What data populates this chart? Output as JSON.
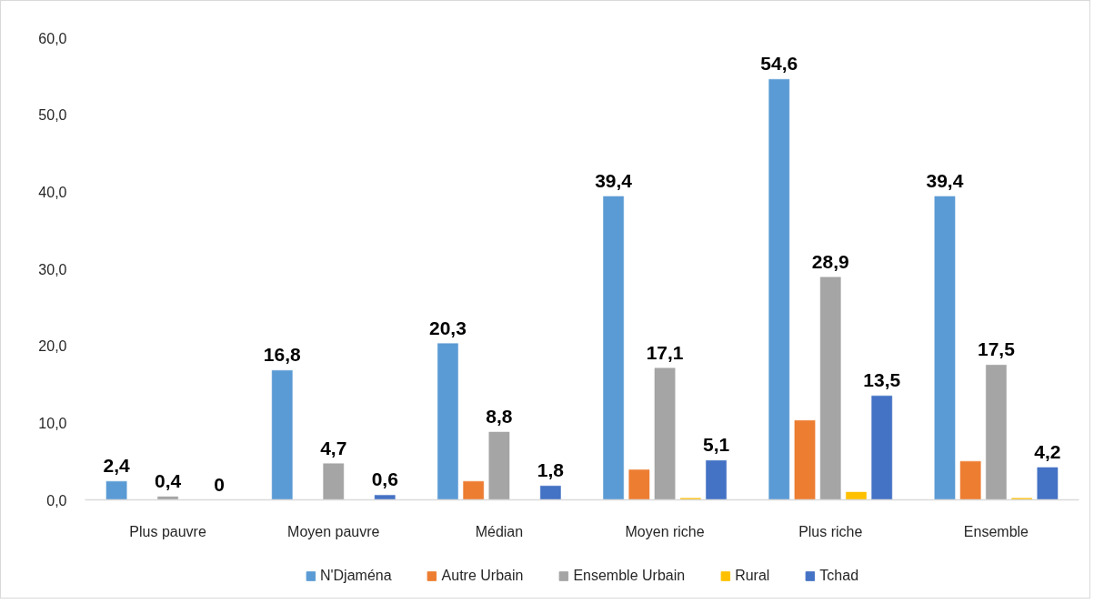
{
  "chart_data": {
    "type": "bar",
    "categories": [
      "Plus pauvre",
      "Moyen pauvre",
      "Médian",
      "Moyen riche",
      "Plus riche",
      "Ensemble"
    ],
    "series": [
      {
        "name": "N'Djaména",
        "color": "#5b9bd5",
        "values": [
          2.4,
          16.8,
          20.3,
          39.4,
          54.6,
          39.4
        ],
        "value_labels": [
          "2,4",
          "16,8",
          "20,3",
          "39,4",
          "54,6",
          "39,4"
        ]
      },
      {
        "name": "Autre Urbain",
        "color": "#ed7d31",
        "values": [
          0,
          0,
          2.4,
          3.9,
          10.3,
          5.0
        ]
      },
      {
        "name": "Ensemble Urbain",
        "color": "#a5a5a5",
        "values": [
          0.4,
          4.7,
          8.8,
          17.1,
          28.9,
          17.5
        ],
        "value_labels": [
          "0,4",
          "4,7",
          "8,8",
          "17,1",
          "28,9",
          "17,5"
        ]
      },
      {
        "name": "Rural",
        "color": "#ffc000",
        "values": [
          0,
          0,
          0,
          0.2,
          1.0,
          0.2
        ]
      },
      {
        "name": "Tchad",
        "color": "#4472c4",
        "values": [
          0,
          0.6,
          1.8,
          5.1,
          13.5,
          4.2
        ],
        "value_labels": [
          "0",
          "0,6",
          "1,8",
          "5,1",
          "13,5",
          "4,2"
        ]
      }
    ],
    "ylim": [
      0,
      60
    ],
    "yticks": [
      {
        "value": 0,
        "label": "0,0"
      },
      {
        "value": 10,
        "label": "10,0"
      },
      {
        "value": 20,
        "label": "20,0"
      },
      {
        "value": 30,
        "label": "30,0"
      },
      {
        "value": 40,
        "label": "40,0"
      },
      {
        "value": 50,
        "label": "50,0"
      },
      {
        "value": 60,
        "label": "60,0"
      }
    ],
    "legend": "bottom"
  }
}
